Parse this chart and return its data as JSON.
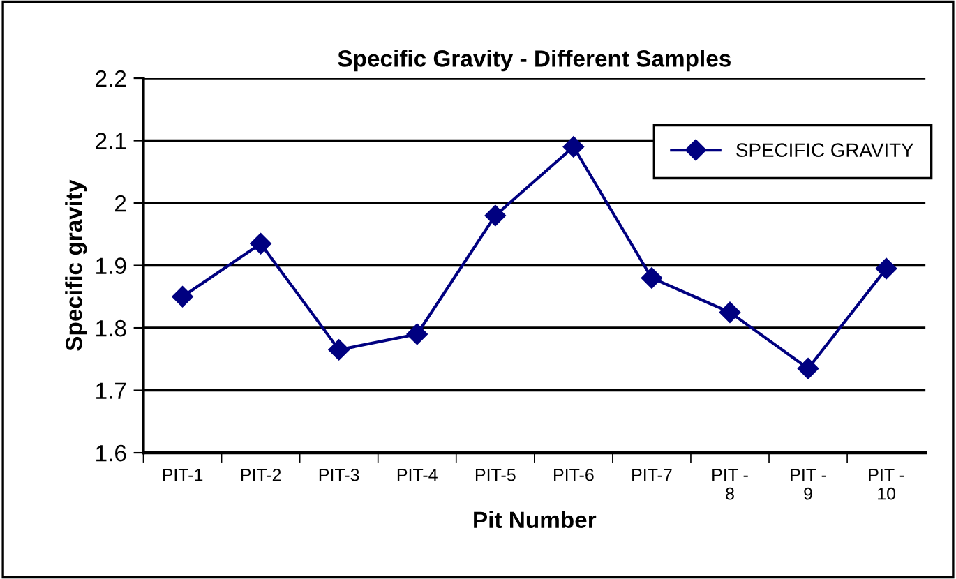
{
  "chart_data": {
    "type": "line",
    "title": "Specific Gravity - Different Samples",
    "xlabel": "Pit Number",
    "ylabel": "Specific gravity",
    "categories": [
      "PIT-1",
      "PIT-2",
      "PIT-3",
      "PIT-4",
      "PIT-5",
      "PIT-6",
      "PIT-7",
      "PIT - 8",
      "PIT - 9",
      "PIT - 10"
    ],
    "series": [
      {
        "name": "SPECIFIC GRAVITY",
        "color": "#000080",
        "values": [
          1.85,
          1.935,
          1.765,
          1.79,
          1.98,
          2.09,
          1.88,
          1.825,
          1.735,
          1.895
        ]
      }
    ],
    "ylim": [
      1.6,
      2.2
    ],
    "yticks": [
      1.6,
      1.7,
      1.8,
      1.9,
      2,
      2.1,
      2.2
    ],
    "grid": "y",
    "legend": "top right",
    "marker": "diamond",
    "line_style": "solid"
  }
}
